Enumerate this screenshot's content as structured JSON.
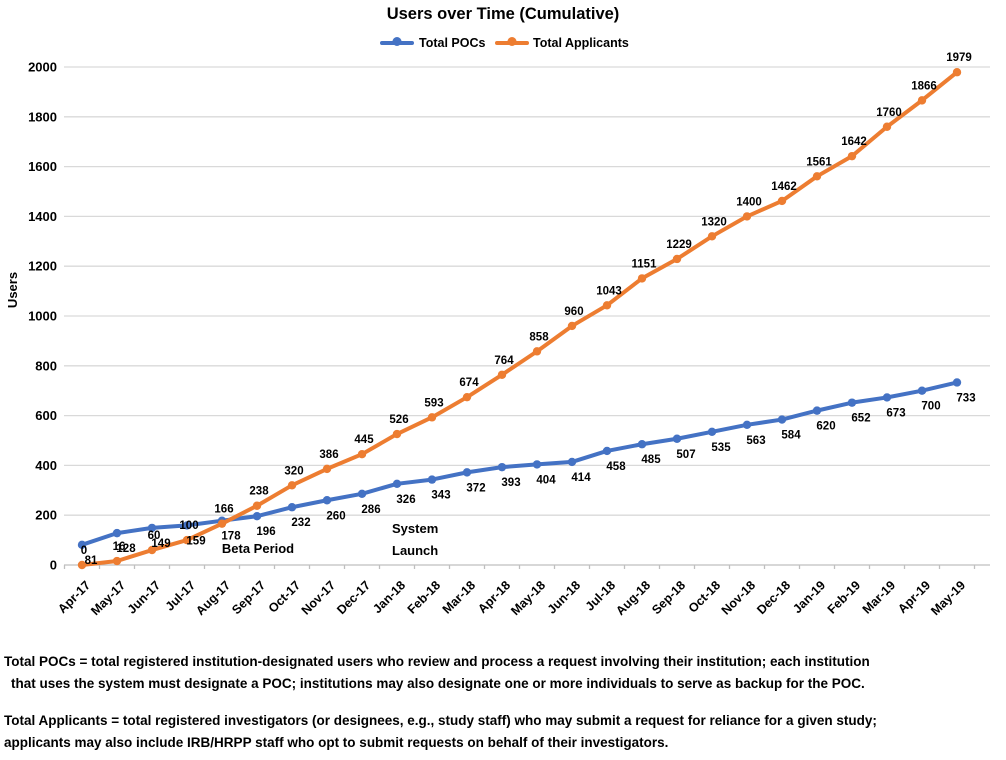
{
  "chart_data": {
    "type": "line",
    "title": "Users over Time (Cumulative)",
    "xlabel": "",
    "ylabel": "Users",
    "ylim": [
      0,
      2000
    ],
    "ytick_step": 200,
    "grid": true,
    "legend_position": "top",
    "categories": [
      "Apr-17",
      "May-17",
      "Jun-17",
      "Jul-17",
      "Aug-17",
      "Sep-17",
      "Oct-17",
      "Nov-17",
      "Dec-17",
      "Jan-18",
      "Feb-18",
      "Mar-18",
      "Apr-18",
      "May-18",
      "Jun-18",
      "Jul-18",
      "Aug-18",
      "Sep-18",
      "Oct-18",
      "Nov-18",
      "Dec-18",
      "Jan-19",
      "Feb-19",
      "Mar-19",
      "Apr-19",
      "May-19"
    ],
    "series": [
      {
        "name": "Total POCs",
        "color": "#4472C4",
        "label_placement": "below",
        "values": [
          81,
          128,
          149,
          159,
          178,
          196,
          232,
          260,
          286,
          326,
          343,
          372,
          393,
          404,
          414,
          458,
          485,
          507,
          535,
          563,
          584,
          620,
          652,
          673,
          700,
          733
        ]
      },
      {
        "name": "Total Applicants",
        "color": "#ED7D31",
        "label_placement": "above",
        "values": [
          0,
          16,
          60,
          100,
          166,
          238,
          320,
          386,
          445,
          526,
          593,
          674,
          764,
          858,
          960,
          1043,
          1151,
          1229,
          1320,
          1400,
          1462,
          1561,
          1642,
          1760,
          1866,
          1979
        ]
      }
    ],
    "annotations": [
      {
        "lines": [
          "Beta Period"
        ]
      },
      {
        "lines": [
          "System",
          "Launch"
        ]
      }
    ]
  },
  "footnotes": [
    {
      "label": "Total POCs",
      "line1_rest": " = total registered institution-designated users who review and process a request involving their institution; each institution",
      "line2": "that uses the system must designate a POC; institutions may also designate one or more individuals to serve as backup for the POC."
    },
    {
      "label": "Total Applicants",
      "line1_rest": " = total registered investigators (or designees, e.g., study staff) who may submit a request for reliance for a given study;",
      "line2": "applicants may also include IRB/HRPP staff who opt to submit requests on behalf of their investigators."
    }
  ]
}
